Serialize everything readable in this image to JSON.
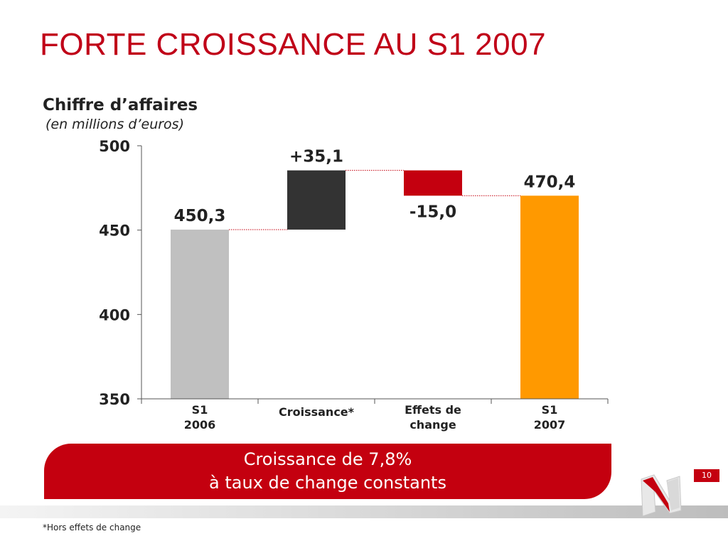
{
  "slide": {
    "title": "FORTE CROISSANCE AU S1 2007",
    "footnote": "*Hors effets de change",
    "page_number": "10"
  },
  "banner": {
    "line1": "Croissance de 7,8%",
    "line2": "à taux de change constants"
  },
  "chart_data": {
    "type": "bar",
    "variant": "waterfall",
    "title": "Chiffre d’affaires",
    "subtitle": "(en millions d’euros)",
    "categories": [
      [
        "S1",
        "2006"
      ],
      [
        "Croissance*"
      ],
      [
        "Effets de",
        "change"
      ],
      [
        "S1",
        "2007"
      ]
    ],
    "bars": [
      {
        "kind": "total",
        "start": 350,
        "end": 450.3,
        "label": "450,3",
        "label_position": "above",
        "color": "#c0c0c0"
      },
      {
        "kind": "delta",
        "start": 450.3,
        "end": 485.4,
        "label": "+35,1",
        "label_position": "above",
        "color": "#333333"
      },
      {
        "kind": "delta",
        "start": 485.4,
        "end": 470.4,
        "label": "-15,0",
        "label_position": "below",
        "color": "#c4000f"
      },
      {
        "kind": "total",
        "start": 350,
        "end": 470.4,
        "label": "470,4",
        "label_position": "above",
        "color": "#ff9900"
      }
    ],
    "ylim": [
      350,
      500
    ],
    "yticks": [
      "350",
      "400",
      "450",
      "500"
    ],
    "ytick_values": [
      350,
      400,
      450,
      500
    ],
    "grid": false,
    "connector_color": "#c4000f"
  }
}
